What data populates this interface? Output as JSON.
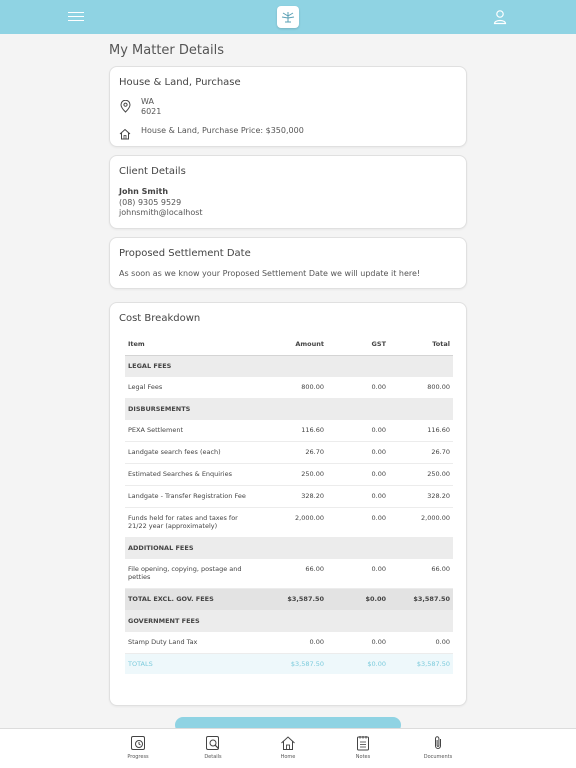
{
  "page_title": "My Matter Details",
  "matter": {
    "title": "House & Land, Purchase",
    "state": "WA",
    "postcode": "6021",
    "price_line": "House & Land, Purchase Price: $350,000"
  },
  "client": {
    "title": "Client Details",
    "name": "John Smith",
    "phone": "(08) 9305 9529",
    "email": "johnsmith@localhost"
  },
  "settlement": {
    "title": "Proposed Settlement Date",
    "text": "As soon as we know your Proposed Settlement Date we will update it here!"
  },
  "costs": {
    "title": "Cost Breakdown",
    "headers": [
      "Item",
      "Amount",
      "GST",
      "Total"
    ],
    "rows": [
      {
        "type": "section",
        "item": "LEGAL FEES",
        "amount": "",
        "gst": "",
        "total": ""
      },
      {
        "type": "row",
        "item": "Legal Fees",
        "amount": "800.00",
        "gst": "0.00",
        "total": "800.00"
      },
      {
        "type": "section",
        "item": "DISBURSEMENTS",
        "amount": "",
        "gst": "",
        "total": ""
      },
      {
        "type": "row",
        "item": "PEXA Settlement",
        "amount": "116.60",
        "gst": "0.00",
        "total": "116.60"
      },
      {
        "type": "row",
        "item": "Landgate search fees (each)",
        "amount": "26.70",
        "gst": "0.00",
        "total": "26.70"
      },
      {
        "type": "row",
        "item": "Estimated Searches & Enquiries",
        "amount": "250.00",
        "gst": "0.00",
        "total": "250.00"
      },
      {
        "type": "row",
        "item": "Landgate - Transfer Registration Fee",
        "amount": "328.20",
        "gst": "0.00",
        "total": "328.20"
      },
      {
        "type": "tall",
        "item": "Funds held for rates and taxes for 21/22 year (approximately)",
        "amount": "2,000.00",
        "gst": "0.00",
        "total": "2,000.00"
      },
      {
        "type": "section",
        "item": "ADDITIONAL FEES",
        "amount": "",
        "gst": "",
        "total": ""
      },
      {
        "type": "tall",
        "item": "File opening, copying, postage and petties",
        "amount": "66.00",
        "gst": "0.00",
        "total": "66.00"
      },
      {
        "type": "subtotal",
        "item": "TOTAL EXCL. GOV. FEES",
        "amount": "$3,587.50",
        "gst": "$0.00",
        "total": "$3,587.50"
      },
      {
        "type": "section",
        "item": "GOVERNMENT FEES",
        "amount": "",
        "gst": "",
        "total": ""
      },
      {
        "type": "row",
        "item": "Stamp Duty Land Tax",
        "amount": "0.00",
        "gst": "0.00",
        "total": "0.00"
      },
      {
        "type": "totals",
        "item": "TOTALS",
        "amount": "$3,587.50",
        "gst": "$0.00",
        "total": "$3,587.50"
      }
    ]
  },
  "tabs": [
    {
      "label": "Progress",
      "icon": "progress-icon"
    },
    {
      "label": "Details",
      "icon": "details-icon"
    },
    {
      "label": "Home",
      "icon": "home-icon"
    },
    {
      "label": "Notes",
      "icon": "notes-icon"
    },
    {
      "label": "Documents",
      "icon": "documents-icon"
    }
  ],
  "colors": {
    "accent": "#8fd3e3",
    "totals_text": "#7ccbdc",
    "section_bg": "#ececec"
  }
}
